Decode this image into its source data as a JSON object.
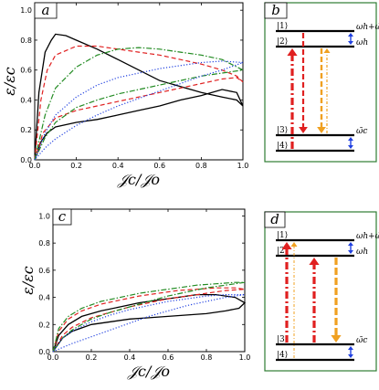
{
  "panels": {
    "a": "a",
    "b": "b",
    "c": "c",
    "d": "d"
  },
  "chart_data": [
    {
      "panel": "a",
      "type": "line",
      "xlabel": "𝒥c/𝒥o",
      "ylabel": "ε/εc",
      "xlim": [
        0,
        1.0
      ],
      "ylim": [
        0,
        1.05
      ],
      "xticks": [
        "0.0",
        "0.2",
        "0.4",
        "0.6",
        "0.8",
        "1.0"
      ],
      "yticks": [
        "0.0",
        "0.2",
        "0.4",
        "0.6",
        "0.8",
        "1.0"
      ],
      "grid": false,
      "series": [
        {
          "color": "#000000",
          "dash": "solid",
          "upper": [
            [
              0,
              0
            ],
            [
              0.02,
              0.45
            ],
            [
              0.05,
              0.72
            ],
            [
              0.08,
              0.8
            ],
            [
              0.1,
              0.84
            ],
            [
              0.15,
              0.83
            ],
            [
              0.2,
              0.8
            ],
            [
              0.3,
              0.74
            ],
            [
              0.4,
              0.67
            ],
            [
              0.5,
              0.6
            ],
            [
              0.6,
              0.53
            ],
            [
              0.7,
              0.49
            ],
            [
              0.8,
              0.45
            ],
            [
              0.9,
              0.42
            ],
            [
              0.97,
              0.4
            ],
            [
              1.0,
              0.36
            ]
          ],
          "lower": [
            [
              0,
              0
            ],
            [
              0.03,
              0.12
            ],
            [
              0.06,
              0.18
            ],
            [
              0.1,
              0.22
            ],
            [
              0.2,
              0.25
            ],
            [
              0.3,
              0.27
            ],
            [
              0.4,
              0.3
            ],
            [
              0.5,
              0.33
            ],
            [
              0.6,
              0.36
            ],
            [
              0.7,
              0.4
            ],
            [
              0.8,
              0.43
            ],
            [
              0.9,
              0.47
            ],
            [
              0.97,
              0.45
            ],
            [
              1.0,
              0.36
            ]
          ]
        },
        {
          "color": "#e02020",
          "dash": "dashed",
          "upper": [
            [
              0,
              0
            ],
            [
              0.03,
              0.4
            ],
            [
              0.06,
              0.6
            ],
            [
              0.1,
              0.7
            ],
            [
              0.2,
              0.76
            ],
            [
              0.3,
              0.76
            ],
            [
              0.4,
              0.74
            ],
            [
              0.5,
              0.72
            ],
            [
              0.6,
              0.7
            ],
            [
              0.7,
              0.67
            ],
            [
              0.8,
              0.64
            ],
            [
              0.9,
              0.6
            ],
            [
              0.97,
              0.56
            ],
            [
              1.0,
              0.52
            ]
          ],
          "lower": [
            [
              0,
              0
            ],
            [
              0.04,
              0.18
            ],
            [
              0.1,
              0.28
            ],
            [
              0.2,
              0.33
            ],
            [
              0.3,
              0.36
            ],
            [
              0.4,
              0.39
            ],
            [
              0.5,
              0.42
            ],
            [
              0.6,
              0.45
            ],
            [
              0.7,
              0.48
            ],
            [
              0.8,
              0.51
            ],
            [
              0.9,
              0.54
            ],
            [
              0.97,
              0.55
            ],
            [
              1.0,
              0.52
            ]
          ]
        },
        {
          "color": "#228b22",
          "dash": "dashdot",
          "upper": [
            [
              0,
              0
            ],
            [
              0.05,
              0.3
            ],
            [
              0.1,
              0.48
            ],
            [
              0.2,
              0.62
            ],
            [
              0.3,
              0.7
            ],
            [
              0.4,
              0.74
            ],
            [
              0.5,
              0.75
            ],
            [
              0.6,
              0.74
            ],
            [
              0.7,
              0.72
            ],
            [
              0.8,
              0.7
            ],
            [
              0.9,
              0.67
            ],
            [
              1.0,
              0.6
            ]
          ],
          "lower": [
            [
              0,
              0
            ],
            [
              0.05,
              0.15
            ],
            [
              0.1,
              0.25
            ],
            [
              0.2,
              0.35
            ],
            [
              0.3,
              0.4
            ],
            [
              0.4,
              0.44
            ],
            [
              0.5,
              0.47
            ],
            [
              0.6,
              0.5
            ],
            [
              0.7,
              0.53
            ],
            [
              0.8,
              0.56
            ],
            [
              0.9,
              0.58
            ],
            [
              1.0,
              0.6
            ]
          ]
        },
        {
          "color": "#2040e0",
          "dash": "dotted",
          "upper": [
            [
              0,
              0
            ],
            [
              0.05,
              0.18
            ],
            [
              0.1,
              0.3
            ],
            [
              0.2,
              0.42
            ],
            [
              0.3,
              0.5
            ],
            [
              0.4,
              0.55
            ],
            [
              0.5,
              0.58
            ],
            [
              0.6,
              0.61
            ],
            [
              0.7,
              0.63
            ],
            [
              0.8,
              0.65
            ],
            [
              0.9,
              0.66
            ],
            [
              1.0,
              0.65
            ]
          ],
          "lower": [
            [
              0,
              0
            ],
            [
              0.05,
              0.08
            ],
            [
              0.1,
              0.14
            ],
            [
              0.2,
              0.23
            ],
            [
              0.3,
              0.3
            ],
            [
              0.4,
              0.36
            ],
            [
              0.5,
              0.41
            ],
            [
              0.6,
              0.46
            ],
            [
              0.7,
              0.51
            ],
            [
              0.8,
              0.56
            ],
            [
              0.9,
              0.6
            ],
            [
              1.0,
              0.65
            ]
          ]
        }
      ]
    },
    {
      "panel": "c",
      "type": "line",
      "xlabel": "𝒥c/𝒥o",
      "ylabel": "ε/εc",
      "xlim": [
        0,
        1.0
      ],
      "ylim": [
        0,
        1.05
      ],
      "xticks": [
        "0.0",
        "0.2",
        "0.4",
        "0.6",
        "0.8",
        "1.0"
      ],
      "yticks": [
        "0.0",
        "0.2",
        "0.4",
        "0.6",
        "0.8",
        "1.0"
      ],
      "grid": false,
      "series": [
        {
          "color": "#000000",
          "dash": "solid",
          "upper": [
            [
              0,
              0
            ],
            [
              0.03,
              0.12
            ],
            [
              0.08,
              0.2
            ],
            [
              0.15,
              0.26
            ],
            [
              0.25,
              0.3
            ],
            [
              0.35,
              0.33
            ],
            [
              0.45,
              0.36
            ],
            [
              0.55,
              0.38
            ],
            [
              0.65,
              0.4
            ],
            [
              0.75,
              0.42
            ],
            [
              0.85,
              0.42
            ],
            [
              0.95,
              0.4
            ],
            [
              1.0,
              0.36
            ]
          ],
          "lower": [
            [
              0,
              0
            ],
            [
              0.05,
              0.1
            ],
            [
              0.1,
              0.15
            ],
            [
              0.2,
              0.2
            ],
            [
              0.3,
              0.22
            ],
            [
              0.4,
              0.24
            ],
            [
              0.5,
              0.25
            ],
            [
              0.6,
              0.26
            ],
            [
              0.7,
              0.27
            ],
            [
              0.8,
              0.28
            ],
            [
              0.9,
              0.3
            ],
            [
              0.97,
              0.32
            ],
            [
              1.0,
              0.36
            ]
          ]
        },
        {
          "color": "#e02020",
          "dash": "dashed",
          "upper": [
            [
              0,
              0
            ],
            [
              0.03,
              0.15
            ],
            [
              0.08,
              0.24
            ],
            [
              0.15,
              0.3
            ],
            [
              0.25,
              0.35
            ],
            [
              0.35,
              0.38
            ],
            [
              0.45,
              0.41
            ],
            [
              0.55,
              0.43
            ],
            [
              0.65,
              0.45
            ],
            [
              0.75,
              0.46
            ],
            [
              0.85,
              0.47
            ],
            [
              0.95,
              0.47
            ],
            [
              1.0,
              0.46
            ]
          ],
          "lower": [
            [
              0,
              0
            ],
            [
              0.05,
              0.12
            ],
            [
              0.1,
              0.18
            ],
            [
              0.2,
              0.25
            ],
            [
              0.3,
              0.29
            ],
            [
              0.4,
              0.33
            ],
            [
              0.5,
              0.36
            ],
            [
              0.6,
              0.39
            ],
            [
              0.7,
              0.41
            ],
            [
              0.8,
              0.43
            ],
            [
              0.9,
              0.45
            ],
            [
              1.0,
              0.46
            ]
          ]
        },
        {
          "color": "#228b22",
          "dash": "dashdot",
          "upper": [
            [
              0,
              0
            ],
            [
              0.03,
              0.17
            ],
            [
              0.08,
              0.26
            ],
            [
              0.15,
              0.32
            ],
            [
              0.25,
              0.37
            ],
            [
              0.35,
              0.4
            ],
            [
              0.45,
              0.43
            ],
            [
              0.55,
              0.45
            ],
            [
              0.65,
              0.47
            ],
            [
              0.75,
              0.49
            ],
            [
              0.85,
              0.5
            ],
            [
              0.95,
              0.51
            ],
            [
              1.0,
              0.51
            ]
          ],
          "lower": [
            [
              0,
              0
            ],
            [
              0.05,
              0.1
            ],
            [
              0.1,
              0.16
            ],
            [
              0.2,
              0.24
            ],
            [
              0.3,
              0.29
            ],
            [
              0.4,
              0.33
            ],
            [
              0.5,
              0.37
            ],
            [
              0.6,
              0.41
            ],
            [
              0.7,
              0.44
            ],
            [
              0.8,
              0.47
            ],
            [
              0.9,
              0.49
            ],
            [
              1.0,
              0.51
            ]
          ]
        },
        {
          "color": "#2040e0",
          "dash": "dotted",
          "upper": [
            [
              0,
              0
            ],
            [
              0.05,
              0.1
            ],
            [
              0.1,
              0.15
            ],
            [
              0.2,
              0.22
            ],
            [
              0.3,
              0.27
            ],
            [
              0.4,
              0.31
            ],
            [
              0.5,
              0.34
            ],
            [
              0.6,
              0.37
            ],
            [
              0.7,
              0.39
            ],
            [
              0.8,
              0.41
            ],
            [
              0.9,
              0.42
            ],
            [
              1.0,
              0.42
            ]
          ],
          "lower": [
            [
              0,
              0
            ],
            [
              0.05,
              0.03
            ],
            [
              0.1,
              0.06
            ],
            [
              0.2,
              0.11
            ],
            [
              0.3,
              0.16
            ],
            [
              0.4,
              0.21
            ],
            [
              0.5,
              0.26
            ],
            [
              0.6,
              0.3
            ],
            [
              0.7,
              0.34
            ],
            [
              0.8,
              0.37
            ],
            [
              0.9,
              0.4
            ],
            [
              1.0,
              0.42
            ]
          ]
        }
      ]
    }
  ],
  "diagrams": {
    "b": {
      "levels": [
        "|1⟩",
        "|2⟩",
        "|3⟩",
        "|4⟩"
      ],
      "omega_h_c": "ωh+ω̃c",
      "omega_h": "ωh",
      "omega_c": "ω̃c",
      "colors": {
        "red": "#e02020",
        "orange": "#f0a020",
        "blue": "#2040e0",
        "border": "#2e7d32"
      }
    },
    "d": {
      "levels": [
        "|1⟩",
        "|2⟩",
        "|3⟩",
        "|4⟩"
      ],
      "omega_h_c": "ωh+ω̃c",
      "omega_h": "ωh",
      "omega_c": "ω̃c",
      "colors": {
        "red": "#e02020",
        "orange": "#f0a020",
        "blue": "#2040e0",
        "border": "#2e7d32"
      }
    }
  }
}
